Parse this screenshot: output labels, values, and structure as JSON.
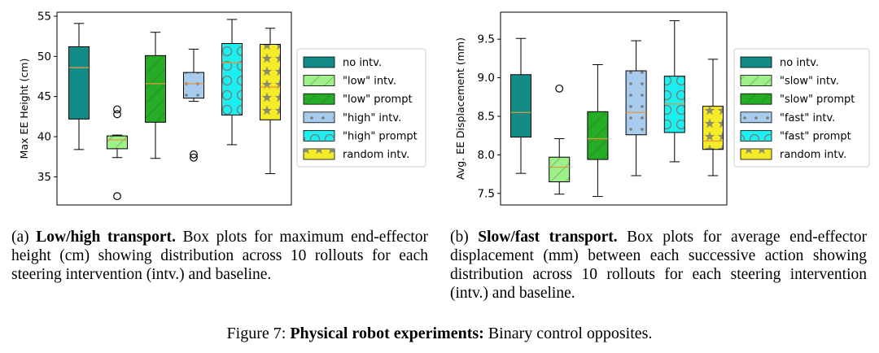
{
  "chart_data": [
    {
      "type": "box",
      "title": "",
      "xlabel": "",
      "ylabel": "Max EE Height (cm)",
      "ylim": [
        31.5,
        55.5
      ],
      "yticks": [
        35,
        40,
        45,
        50,
        55
      ],
      "grid": false,
      "legend_position": "right",
      "series": [
        {
          "name": "no intv.",
          "color": "#138c87",
          "hatch": "none",
          "whisker_low": 38.4,
          "q1": 42.2,
          "median": 48.6,
          "q3": 51.2,
          "whisker_high": 54.1,
          "outliers": []
        },
        {
          "name": "\"low\" intv.",
          "color": "#9ef08a",
          "hatch": "diagonal",
          "whisker_low": 37.4,
          "q1": 38.5,
          "median": 39.6,
          "q3": 40.1,
          "whisker_high": 40.2,
          "outliers": [
            32.6,
            42.8,
            43.4
          ]
        },
        {
          "name": "\"low\" prompt",
          "color": "#26ad26",
          "hatch": "diagonal",
          "whisker_low": 37.3,
          "q1": 41.8,
          "median": 46.6,
          "q3": 50.1,
          "whisker_high": 53.0,
          "outliers": []
        },
        {
          "name": "\"high\" intv.",
          "color": "#a8ccee",
          "hatch": "dots",
          "whisker_low": 44.4,
          "q1": 44.8,
          "median": 46.6,
          "q3": 48.0,
          "whisker_high": 50.9,
          "outliers": [
            37.4,
            37.8
          ]
        },
        {
          "name": "\"high\" prompt",
          "color": "#1af0f0",
          "hatch": "circles",
          "whisker_low": 39.0,
          "q1": 42.7,
          "median": 49.2,
          "q3": 51.6,
          "whisker_high": 54.6,
          "outliers": []
        },
        {
          "name": "random intv.",
          "color": "#f5ea28",
          "hatch": "stars",
          "whisker_low": 35.4,
          "q1": 42.1,
          "median": 46.2,
          "q3": 51.5,
          "whisker_high": 53.5,
          "outliers": []
        }
      ]
    },
    {
      "type": "box",
      "title": "",
      "xlabel": "",
      "ylabel": "Avg. EE Displacement (mm)",
      "ylim": [
        7.35,
        9.85
      ],
      "yticks": [
        "7.5",
        "8.0",
        "8.5",
        "9.0",
        "9.5"
      ],
      "grid": false,
      "legend_position": "right",
      "series": [
        {
          "name": "no intv.",
          "color": "#138c87",
          "hatch": "none",
          "whisker_low": 7.76,
          "q1": 8.23,
          "median": 8.55,
          "q3": 9.04,
          "whisker_high": 9.51,
          "outliers": []
        },
        {
          "name": "\"slow\" intv.",
          "color": "#9ef08a",
          "hatch": "diagonal",
          "whisker_low": 7.49,
          "q1": 7.65,
          "median": 7.84,
          "q3": 7.97,
          "whisker_high": 8.21,
          "outliers": [
            8.86
          ]
        },
        {
          "name": "\"slow\" prompt",
          "color": "#26ad26",
          "hatch": "diagonal",
          "whisker_low": 7.46,
          "q1": 7.94,
          "median": 8.21,
          "q3": 8.56,
          "whisker_high": 9.17,
          "outliers": []
        },
        {
          "name": "\"fast\" intv.",
          "color": "#a8ccee",
          "hatch": "dots",
          "whisker_low": 7.73,
          "q1": 8.26,
          "median": 8.55,
          "q3": 9.09,
          "whisker_high": 9.48,
          "outliers": []
        },
        {
          "name": "\"fast\" prompt",
          "color": "#1af0f0",
          "hatch": "circles",
          "whisker_low": 7.91,
          "q1": 8.29,
          "median": 8.66,
          "q3": 9.02,
          "whisker_high": 9.74,
          "outliers": []
        },
        {
          "name": "random intv.",
          "color": "#f5ea28",
          "hatch": "stars",
          "whisker_low": 7.73,
          "q1": 8.07,
          "median": 8.18,
          "q3": 8.63,
          "whisker_high": 9.24,
          "outliers": []
        }
      ]
    }
  ],
  "captions": {
    "a_label": "(a)",
    "a_bold": "Low/high transport.",
    "a_text": "Box plots for maximum end-effector height (cm) showing distribution across 10 rollouts for each steering intervention (intv.) and baseline.",
    "b_label": "(b)",
    "b_bold": "Slow/fast transport.",
    "b_text": "Box plots for average end-effector displacement (mm) between each successive action showing distribution across 10 rollouts for each steering intervention (intv.) and baseline.",
    "figure_label": "Figure 7:",
    "figure_bold": "Physical robot experiments:",
    "figure_text": "Binary control opposites."
  },
  "colors": {
    "median_line": "#e8963c",
    "hatch": "#888888",
    "axis": "#000000"
  }
}
